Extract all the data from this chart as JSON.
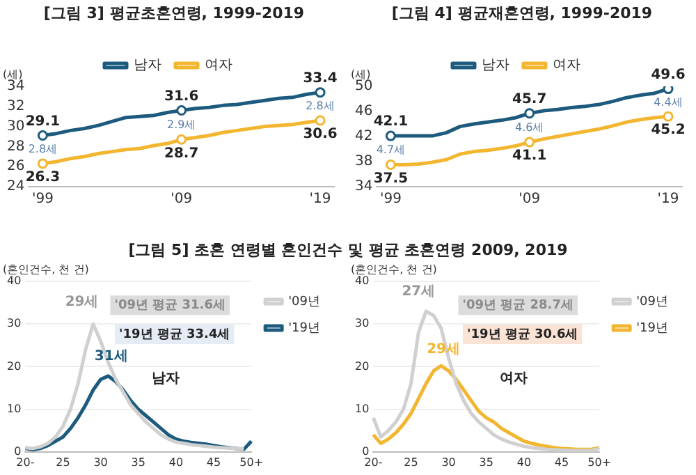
{
  "chart_data": [
    {
      "type": "line",
      "title": "[그림 3] 평균초혼연령, 1999-2019",
      "ylabel": "(세)",
      "x": [
        1999,
        2000,
        2001,
        2002,
        2003,
        2004,
        2005,
        2006,
        2007,
        2008,
        2009,
        2010,
        2011,
        2012,
        2013,
        2014,
        2015,
        2016,
        2017,
        2018,
        2019
      ],
      "xlim": [
        1998,
        2020
      ],
      "xticks": [
        {
          "value": 1999,
          "label": "'99"
        },
        {
          "value": 2009,
          "label": "'09"
        },
        {
          "value": 2019,
          "label": "'19"
        }
      ],
      "ylim": [
        24,
        34
      ],
      "yticks": [
        24,
        26,
        28,
        30,
        32,
        34
      ],
      "legend": "top",
      "grid": false,
      "series": [
        {
          "name": "남자",
          "color": "#1d5b7e",
          "values": [
            29.1,
            29.3,
            29.6,
            29.8,
            30.1,
            30.5,
            30.9,
            31.0,
            31.1,
            31.4,
            31.6,
            31.8,
            31.9,
            32.1,
            32.2,
            32.4,
            32.6,
            32.8,
            32.9,
            33.2,
            33.4
          ],
          "value_labels": [
            "29.1",
            null,
            null,
            null,
            null,
            null,
            null,
            null,
            null,
            null,
            "31.6",
            null,
            null,
            null,
            null,
            null,
            null,
            null,
            null,
            null,
            "33.4"
          ]
        },
        {
          "name": "여자",
          "color": "#f2b630",
          "values": [
            26.3,
            26.5,
            26.8,
            27.0,
            27.3,
            27.5,
            27.7,
            27.8,
            28.1,
            28.3,
            28.7,
            28.9,
            29.1,
            29.4,
            29.6,
            29.8,
            30.0,
            30.1,
            30.2,
            30.4,
            30.6
          ],
          "value_labels": [
            "26.3",
            null,
            null,
            null,
            null,
            null,
            null,
            null,
            null,
            null,
            "28.7",
            null,
            null,
            null,
            null,
            null,
            null,
            null,
            null,
            null,
            "30.6"
          ]
        }
      ],
      "annotations": [
        "2.8세",
        "2.9세",
        "2.8세"
      ]
    },
    {
      "type": "line",
      "title": "[그림 4] 평균재혼연령, 1999-2019",
      "ylabel": "(세)",
      "x": [
        1999,
        2000,
        2001,
        2002,
        2003,
        2004,
        2005,
        2006,
        2007,
        2008,
        2009,
        2010,
        2011,
        2012,
        2013,
        2014,
        2015,
        2016,
        2017,
        2018,
        2019
      ],
      "xlim": [
        1998,
        2020
      ],
      "xticks": [
        {
          "value": 1999,
          "label": "'99"
        },
        {
          "value": 2009,
          "label": "'09"
        },
        {
          "value": 2019,
          "label": "'19"
        }
      ],
      "ylim": [
        34,
        50
      ],
      "yticks": [
        34,
        38,
        42,
        46,
        50
      ],
      "legend": "top",
      "grid": false,
      "series": [
        {
          "name": "남자",
          "color": "#1d5b7e",
          "values": [
            42.1,
            42.1,
            42.1,
            42.1,
            42.6,
            43.6,
            44.0,
            44.3,
            44.6,
            45.0,
            45.7,
            46.1,
            46.3,
            46.6,
            46.8,
            47.1,
            47.6,
            48.2,
            48.6,
            48.9,
            49.6
          ],
          "value_labels": [
            "42.1",
            null,
            null,
            null,
            null,
            null,
            null,
            null,
            null,
            null,
            "45.7",
            null,
            null,
            null,
            null,
            null,
            null,
            null,
            null,
            null,
            "49.6"
          ]
        },
        {
          "name": "여자",
          "color": "#f2b630",
          "values": [
            37.5,
            37.5,
            37.6,
            37.9,
            38.3,
            39.2,
            39.6,
            39.8,
            40.1,
            40.5,
            41.1,
            41.6,
            42.0,
            42.4,
            42.8,
            43.2,
            43.7,
            44.3,
            44.7,
            45.0,
            45.2
          ],
          "value_labels": [
            "37.5",
            null,
            null,
            null,
            null,
            null,
            null,
            null,
            null,
            null,
            "41.1",
            null,
            null,
            null,
            null,
            null,
            null,
            null,
            null,
            null,
            "45.2"
          ]
        }
      ],
      "annotations": [
        "4.7세",
        "4.6세",
        "4.4세"
      ]
    },
    {
      "type": "line",
      "title": "[그림 5] 초혼 연령별 혼인건수 및 평균 초혼연령 2009, 2019",
      "ylabel": "(혼인건수, 천 건)",
      "categories": [
        "20-",
        null,
        null,
        null,
        null,
        "25",
        null,
        null,
        null,
        null,
        "30",
        null,
        null,
        null,
        null,
        "35",
        null,
        null,
        null,
        null,
        "40",
        null,
        null,
        null,
        null,
        "45",
        null,
        null,
        null,
        null,
        "50+"
      ],
      "ylim": [
        0,
        40
      ],
      "yticks": [
        0,
        10,
        20,
        30,
        40
      ],
      "legend": "top right",
      "grid": "y",
      "series": [
        {
          "name": "'09년",
          "color": "#d0d0d0",
          "values": [
            1,
            0.8,
            1.2,
            2,
            3.5,
            6,
            10,
            16,
            24,
            30,
            26,
            21,
            17,
            14,
            11,
            9,
            7,
            5.5,
            4,
            3,
            2.3,
            2,
            1.7,
            1.5,
            1.3,
            1.1,
            1,
            0.9,
            0.8,
            0.7,
            null
          ]
        },
        {
          "name": "'19년",
          "color": "#1d5b7e",
          "values": [
            0.8,
            0.5,
            0.8,
            1.5,
            2.5,
            3.5,
            5.5,
            8,
            11,
            14.5,
            17,
            17.8,
            16.5,
            14.5,
            12,
            10,
            8.5,
            7,
            5.5,
            4,
            3,
            2.5,
            2.2,
            2,
            1.8,
            1.5,
            1.2,
            1,
            0.8,
            0.6,
            2.5
          ]
        }
      ],
      "annotations": [
        "29세",
        "'09년 평균 31.6세",
        "31세",
        "'19년 평균 33.4세",
        "남자"
      ]
    },
    {
      "type": "line",
      "ylabel": "(혼인건수, 천 건)",
      "categories": [
        "20-",
        null,
        null,
        null,
        null,
        "25",
        null,
        null,
        null,
        null,
        "30",
        null,
        null,
        null,
        null,
        "35",
        null,
        null,
        null,
        null,
        "40",
        null,
        null,
        null,
        null,
        "45",
        null,
        null,
        null,
        null,
        "50+"
      ],
      "ylim": [
        0,
        40
      ],
      "yticks": [
        0,
        10,
        20,
        30,
        40
      ],
      "legend": "top right",
      "grid": "y",
      "series": [
        {
          "name": "'09년",
          "color": "#d0d0d0",
          "values": [
            8,
            3.5,
            5,
            7,
            10,
            16,
            28,
            33,
            32,
            29,
            22,
            16,
            12,
            9,
            7,
            5.5,
            4,
            3,
            2.3,
            1.8,
            1.3,
            1,
            0.8,
            0.6,
            0.5,
            0.4,
            0.3,
            0.3,
            0.3,
            0.3,
            0.8
          ]
        },
        {
          "name": "'19년",
          "color": "#f2b630",
          "values": [
            4,
            2,
            3,
            4.5,
            6.5,
            9,
            12.5,
            16,
            19,
            20.2,
            19,
            17,
            14.5,
            12,
            9.5,
            8,
            7,
            5.5,
            4.5,
            3.5,
            2.5,
            2,
            1.6,
            1.3,
            1,
            0.8,
            0.7,
            0.6,
            0.6,
            0.6,
            1
          ]
        }
      ],
      "annotations": [
        "27세",
        "'09년 평균 28.7세",
        "29세",
        "'19년 평균 30.6세",
        "여자"
      ]
    }
  ]
}
